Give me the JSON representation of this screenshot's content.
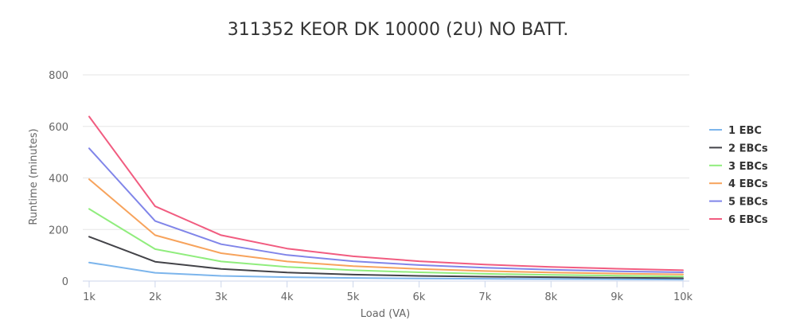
{
  "chart_data": {
    "type": "line",
    "title": "311352 KEOR DK 10000 (2U) NO BATT.",
    "xlabel": "Load (VA)",
    "ylabel": "Runtime (minutes)",
    "x": [
      1000,
      2000,
      3000,
      4000,
      5000,
      6000,
      7000,
      8000,
      9000,
      10000
    ],
    "x_tick_labels": [
      "1k",
      "2k",
      "3k",
      "4k",
      "5k",
      "6k",
      "7k",
      "8k",
      "9k",
      "10k"
    ],
    "xlim": [
      1000,
      10000
    ],
    "y_ticks": [
      0,
      200,
      400,
      600,
      800
    ],
    "ylim": [
      0,
      800
    ],
    "grid": true,
    "legend_position": "right",
    "series": [
      {
        "name": "1 EBC",
        "color": "#7cb5ec",
        "values": [
          72,
          32,
          20,
          15,
          12,
          10,
          9,
          8,
          7,
          6
        ]
      },
      {
        "name": "2 EBCs",
        "color": "#434348",
        "values": [
          172,
          75,
          47,
          33,
          25,
          20,
          17,
          15,
          13,
          11
        ]
      },
      {
        "name": "3 EBCs",
        "color": "#90ed7d",
        "values": [
          280,
          124,
          76,
          55,
          42,
          34,
          28,
          24,
          21,
          18
        ]
      },
      {
        "name": "4 EBCs",
        "color": "#f7a35c",
        "values": [
          395,
          178,
          108,
          76,
          58,
          47,
          39,
          33,
          29,
          26
        ]
      },
      {
        "name": "5 EBCs",
        "color": "#8085e9",
        "values": [
          515,
          233,
          143,
          101,
          77,
          62,
          52,
          44,
          38,
          34
        ]
      },
      {
        "name": "6 EBCs",
        "color": "#f15c80",
        "values": [
          638,
          290,
          178,
          126,
          96,
          77,
          64,
          55,
          48,
          42
        ]
      }
    ]
  }
}
